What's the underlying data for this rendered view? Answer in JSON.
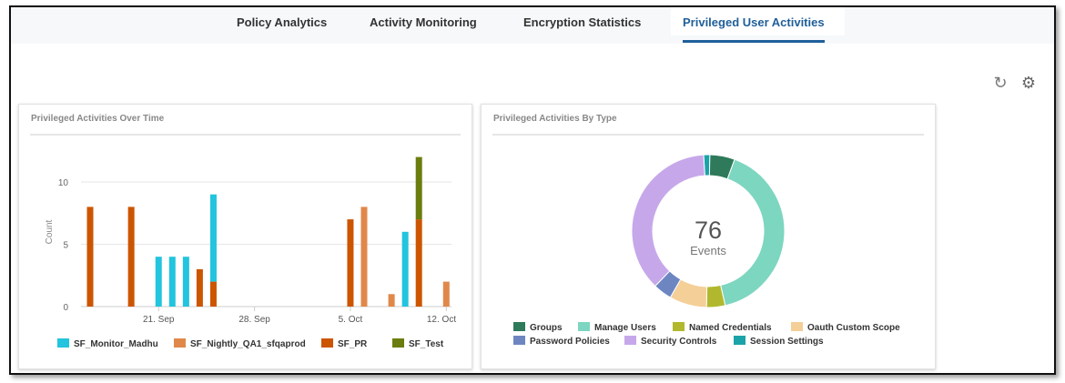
{
  "tabs": [
    {
      "label": "Policy Analytics"
    },
    {
      "label": "Activity Monitoring"
    },
    {
      "label": "Encryption Statistics"
    },
    {
      "label": "Privileged User Activities",
      "active": true
    }
  ],
  "toolbar": {
    "refresh_icon": "refresh-icon",
    "settings_icon": "gear-icon"
  },
  "cards": {
    "over_time_title": "Privileged Activities Over Time",
    "by_type_title": "Privileged Activities By Type"
  },
  "chart_data": [
    {
      "type": "bar",
      "stacked": true,
      "ylabel": "Count",
      "ylim": [
        0,
        12
      ],
      "yticks": [
        "0",
        "5",
        "10"
      ],
      "xticks": [
        "21. Sep",
        "28. Sep",
        "5. Oct",
        "12. Oct"
      ],
      "grid": true,
      "legend": "bottom",
      "x": [
        "16 Sep",
        "19 Sep",
        "21 Sep",
        "22 Sep",
        "23 Sep",
        "24 Sep",
        "25 Sep",
        "5 Oct",
        "6 Oct",
        "8 Oct",
        "9 Oct",
        "10 Oct",
        "12 Oct"
      ],
      "series": [
        {
          "name": "SF_Monitor_Madhu",
          "color": "#22c4de",
          "values": [
            0,
            0,
            4,
            4,
            4,
            0,
            7,
            0,
            0,
            0,
            6,
            0,
            0
          ]
        },
        {
          "name": "SF_Nightly_QA1_sfqaprod",
          "color": "#e0884a",
          "values": [
            0,
            0,
            0,
            0,
            0,
            0,
            0,
            0,
            8,
            1,
            0,
            0,
            2
          ]
        },
        {
          "name": "SF_PR",
          "color": "#cc5500",
          "values": [
            8,
            8,
            0,
            0,
            0,
            3,
            2,
            7,
            0,
            0,
            0,
            7,
            0
          ]
        },
        {
          "name": "SF_Test",
          "color": "#6b7d0e",
          "values": [
            0,
            0,
            0,
            0,
            0,
            0,
            0,
            0,
            0,
            0,
            0,
            5,
            0
          ]
        }
      ]
    },
    {
      "type": "pie",
      "donut": true,
      "center_value": "76",
      "center_label": "Events",
      "legend": "bottom",
      "slices": [
        {
          "name": "Groups",
          "value": 4,
          "color": "#2e7a5a"
        },
        {
          "name": "Manage Users",
          "value": 31,
          "color": "#7dd6c0"
        },
        {
          "name": "Named Credentials",
          "value": 3,
          "color": "#b1b82e"
        },
        {
          "name": "Oauth Custom Scope",
          "value": 6,
          "color": "#f4cf98"
        },
        {
          "name": "Password Policies",
          "value": 3,
          "color": "#6d86c2"
        },
        {
          "name": "Security Controls",
          "value": 28,
          "color": "#c6a8ea"
        },
        {
          "name": "Session Settings",
          "value": 1,
          "color": "#1aa3a8"
        }
      ]
    }
  ]
}
